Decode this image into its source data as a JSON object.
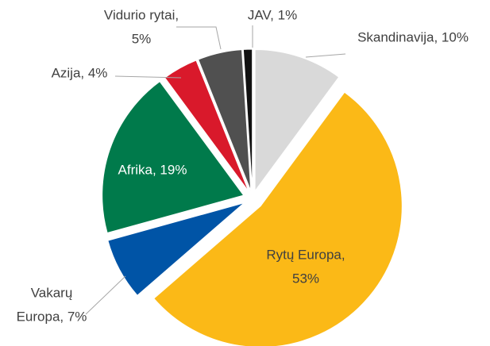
{
  "chart_data": {
    "type": "pie",
    "labels": [
      [
        "Skandinavija, 10%"
      ],
      [
        "Rytų Europa,",
        "53%"
      ],
      [
        "Vakarų",
        "Europa, 7%"
      ],
      [
        "Afrika, 19%"
      ],
      [
        "Azija, 4%"
      ],
      [
        "Vidurio rytai,",
        "5%"
      ],
      [
        "JAV, 1%"
      ]
    ],
    "values": [
      10,
      53,
      7,
      19,
      4,
      5,
      1
    ],
    "colors": [
      "#d9d9d9",
      "#fbb917",
      "#0054a6",
      "#007a4b",
      "#d9192b",
      "#505050",
      "#111111"
    ]
  }
}
